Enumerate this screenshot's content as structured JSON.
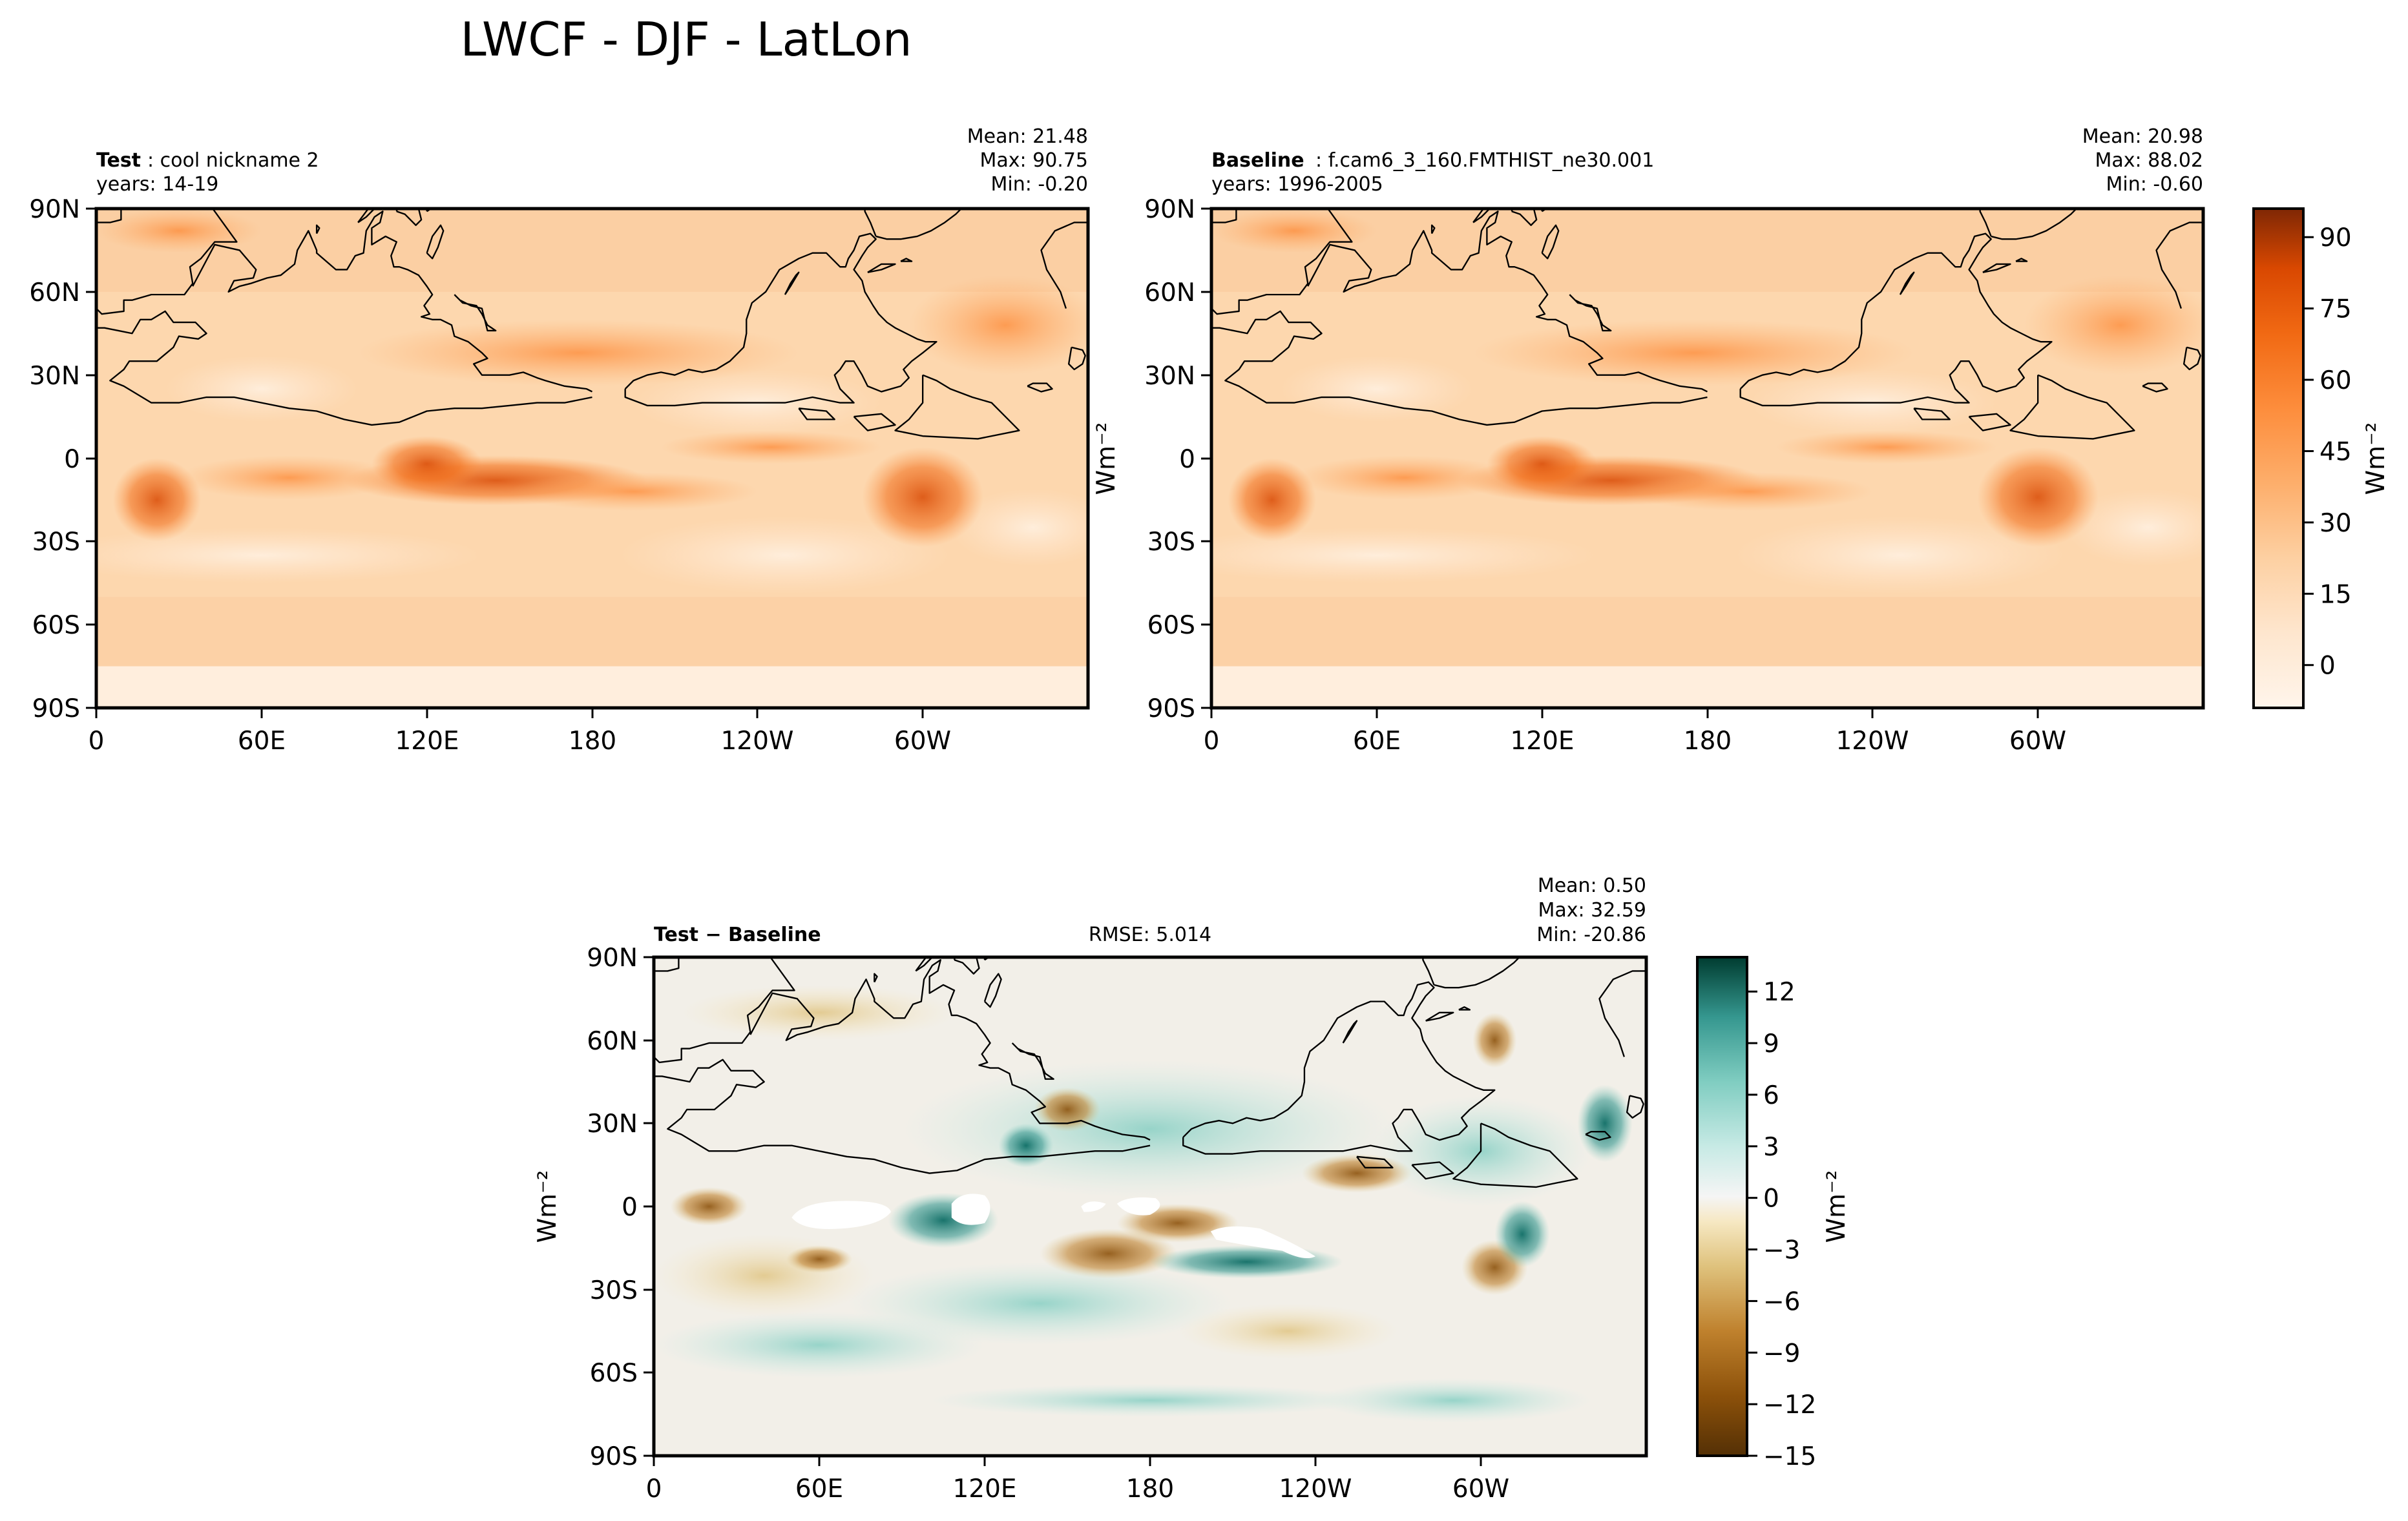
{
  "figure": {
    "title": "LWCF - DJF - LatLon"
  },
  "chart_data": [
    {
      "type": "heatmap",
      "panel": "test",
      "title_bold": "Test",
      "title_rest": ": cool nickname 2",
      "years": "years: 14-19",
      "stats": [
        "Mean: 21.48",
        "Max: 90.75",
        "Min: -0.20"
      ],
      "xticks": [
        "0",
        "60E",
        "120E",
        "180",
        "120W",
        "60W"
      ],
      "yticks": [
        "90N",
        "60N",
        "30N",
        "0",
        "30S",
        "60S",
        "90S"
      ],
      "xlim": [
        0,
        360
      ],
      "ylim": [
        -90,
        90
      ],
      "ylabel": "Wm⁻²",
      "stat_values": {
        "mean": 21.48,
        "max": 90.75,
        "min": -0.2
      },
      "colormap": "Oranges"
    },
    {
      "type": "heatmap",
      "panel": "baseline",
      "title_bold": "Baseline",
      "title_rest": ": f.cam6_3_160.FMTHIST_ne30.001",
      "years": "years: 1996-2005",
      "stats": [
        "Mean: 20.98",
        "Max: 88.02",
        "Min: -0.60"
      ],
      "xticks": [
        "0",
        "60E",
        "120E",
        "180",
        "120W",
        "60W"
      ],
      "yticks": [
        "90N",
        "60N",
        "30N",
        "0",
        "30S",
        "60S",
        "90S"
      ],
      "xlim": [
        0,
        360
      ],
      "ylim": [
        -90,
        90
      ],
      "stat_values": {
        "mean": 20.98,
        "max": 88.02,
        "min": -0.6
      },
      "colormap": "Oranges",
      "colorbar": {
        "ticks": [
          "90",
          "75",
          "60",
          "45",
          "30",
          "15",
          "0"
        ],
        "range": [
          -9,
          96
        ],
        "label": "Wm⁻²"
      }
    },
    {
      "type": "heatmap",
      "panel": "difference",
      "title_bold": "Test − Baseline",
      "rmse": "RMSE: 5.014",
      "stats": [
        "Mean:  0.50",
        "Max: 32.59",
        "Min: -20.86"
      ],
      "xticks": [
        "0",
        "60E",
        "120E",
        "180",
        "120W",
        "60W"
      ],
      "yticks": [
        "90N",
        "60N",
        "30N",
        "0",
        "30S",
        "60S",
        "90S"
      ],
      "xlim": [
        0,
        360
      ],
      "ylim": [
        -90,
        90
      ],
      "ylabel": "Wm⁻²",
      "stat_values": {
        "mean": 0.5,
        "max": 32.59,
        "min": -20.86,
        "rmse": 5.014
      },
      "colormap": "BrBG",
      "colorbar": {
        "ticks": [
          "12",
          "9",
          "6",
          "3",
          "0",
          "−3",
          "−6",
          "−9",
          "−12",
          "−15"
        ],
        "range": [
          -15,
          14
        ],
        "label": "Wm⁻²"
      }
    }
  ]
}
